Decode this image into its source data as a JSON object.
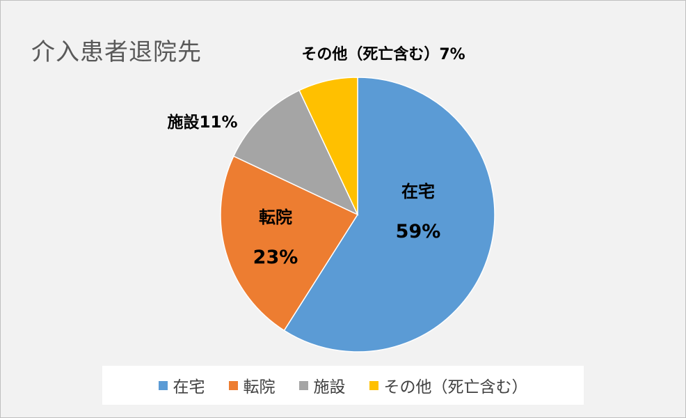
{
  "chart_data": {
    "type": "pie",
    "title": "介入患者退院先",
    "categories": [
      "在宅",
      "転院",
      "施設",
      "その他（死亡含む）"
    ],
    "values": [
      59,
      23,
      11,
      7
    ],
    "unit": "%",
    "colors": [
      "#5b9bd5",
      "#ed7d31",
      "#a5a5a5",
      "#ffc000"
    ],
    "data_labels": [
      {
        "name": "在宅",
        "value": "59%"
      },
      {
        "name": "転院",
        "value": "23%"
      },
      {
        "name": "施設",
        "value": "施設11%"
      },
      {
        "name": "その他（死亡含む）",
        "value": "その他（死亡含む）7%"
      }
    ],
    "legend_position": "bottom"
  }
}
